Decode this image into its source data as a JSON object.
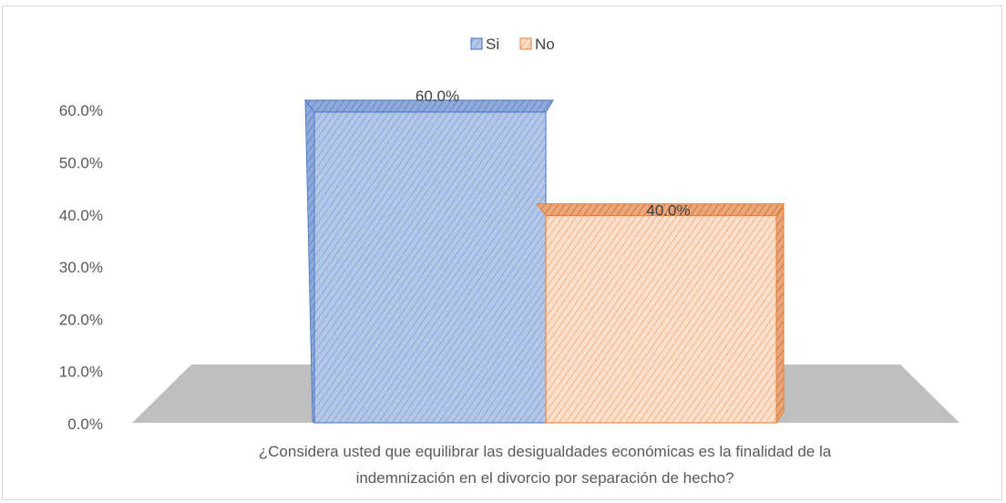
{
  "chart_data": {
    "type": "bar",
    "categories": [
      "¿Considera usted que equilibrar las desigualdades económicas es la finalidad de la indemnización en el divorcio por separación de hecho?"
    ],
    "category_label_lines": [
      "¿Considera usted que equilibrar las desigualdades económicas es la finalidad de la",
      "indemnización en el divorcio por separación de hecho?"
    ],
    "series": [
      {
        "name": "Si",
        "values": [
          60.0
        ],
        "label": "60.0%",
        "color": "#4472c4",
        "fill": "#b4c7e7"
      },
      {
        "name": "No",
        "values": [
          40.0
        ],
        "label": "40.0%",
        "color": "#ed7d31",
        "fill": "#f8cbad"
      }
    ],
    "ylim": [
      0,
      60
    ],
    "yticks": [
      "0.0%",
      "10.0%",
      "20.0%",
      "30.0%",
      "40.0%",
      "50.0%",
      "60.0%"
    ],
    "ytick_values": [
      0,
      10,
      20,
      30,
      40,
      50,
      60
    ],
    "legend_position": "top",
    "floor_color": "#bfbfbf",
    "style": "3d-column-hatched"
  }
}
